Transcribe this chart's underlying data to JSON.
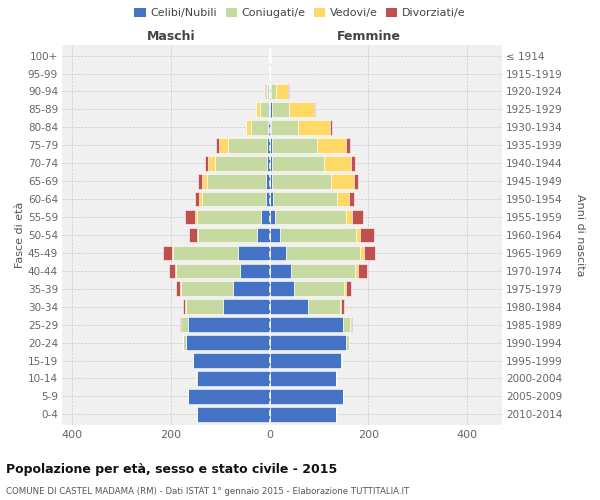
{
  "age_groups": [
    "0-4",
    "5-9",
    "10-14",
    "15-19",
    "20-24",
    "25-29",
    "30-34",
    "35-39",
    "40-44",
    "45-49",
    "50-54",
    "55-59",
    "60-64",
    "65-69",
    "70-74",
    "75-79",
    "80-84",
    "85-89",
    "90-94",
    "95-99",
    "100+"
  ],
  "birth_years": [
    "2010-2014",
    "2005-2009",
    "2000-2004",
    "1995-1999",
    "1990-1994",
    "1985-1989",
    "1980-1984",
    "1975-1979",
    "1970-1974",
    "1965-1969",
    "1960-1964",
    "1955-1959",
    "1950-1954",
    "1945-1949",
    "1940-1944",
    "1935-1939",
    "1930-1934",
    "1925-1929",
    "1920-1924",
    "1915-1919",
    "≤ 1914"
  ],
  "males": {
    "celibi": [
      148,
      165,
      148,
      155,
      170,
      165,
      95,
      75,
      60,
      65,
      25,
      18,
      8,
      7,
      5,
      5,
      3,
      2,
      1,
      0,
      1
    ],
    "coniugati": [
      0,
      0,
      2,
      0,
      5,
      15,
      75,
      105,
      130,
      130,
      120,
      130,
      130,
      120,
      105,
      80,
      35,
      18,
      5,
      0,
      0
    ],
    "vedovi": [
      0,
      0,
      0,
      0,
      0,
      0,
      1,
      2,
      2,
      3,
      3,
      3,
      5,
      10,
      15,
      18,
      10,
      8,
      2,
      0,
      0
    ],
    "divorziati": [
      0,
      0,
      0,
      0,
      0,
      2,
      5,
      8,
      12,
      18,
      15,
      20,
      8,
      8,
      5,
      5,
      0,
      0,
      2,
      0,
      0
    ]
  },
  "females": {
    "nubili": [
      135,
      148,
      135,
      145,
      155,
      148,
      78,
      50,
      43,
      33,
      20,
      10,
      6,
      5,
      5,
      5,
      3,
      4,
      2,
      0,
      1
    ],
    "coniugate": [
      0,
      0,
      0,
      2,
      5,
      15,
      65,
      100,
      130,
      150,
      155,
      145,
      130,
      120,
      105,
      90,
      55,
      35,
      10,
      0,
      0
    ],
    "vedove": [
      0,
      0,
      0,
      0,
      1,
      2,
      2,
      5,
      5,
      8,
      8,
      12,
      25,
      45,
      55,
      60,
      65,
      50,
      25,
      0,
      1
    ],
    "divorziate": [
      0,
      0,
      0,
      0,
      0,
      2,
      5,
      10,
      18,
      22,
      28,
      22,
      10,
      8,
      8,
      8,
      4,
      2,
      2,
      0,
      0
    ]
  },
  "colors": {
    "celibi": "#4472C4",
    "coniugati": "#C5D9A0",
    "vedovi": "#FFD966",
    "divorziati": "#C0504D"
  },
  "xlim": [
    -420,
    470
  ],
  "xticks": [
    -400,
    -200,
    0,
    200,
    400
  ],
  "title": "Popolazione per età, sesso e stato civile - 2015",
  "subtitle": "COMUNE DI CASTEL MADAMA (RM) - Dati ISTAT 1° gennaio 2015 - Elaborazione TUTTITALIA.IT",
  "ylabel_left": "Fasce di età",
  "ylabel_right": "Anni di nascita",
  "maschi_label": "Maschi",
  "femmine_label": "Femmine",
  "legend_labels": [
    "Celibi/Nubili",
    "Coniugati/e",
    "Vedovi/e",
    "Divorziati/e"
  ],
  "background_color": "#f0f0f0",
  "bar_height": 0.82
}
